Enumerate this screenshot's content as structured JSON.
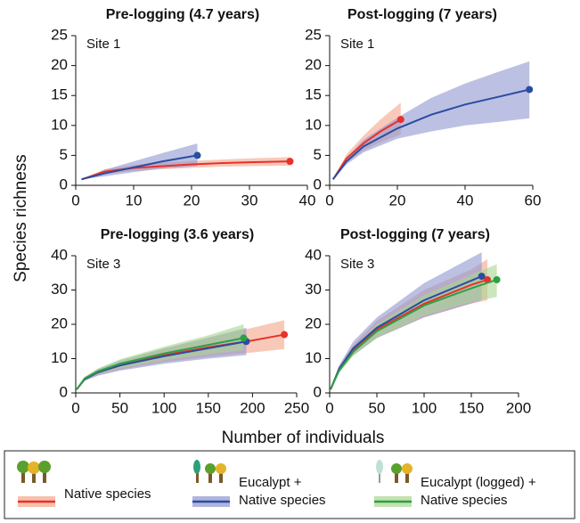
{
  "chart_data": [
    {
      "type": "line",
      "title": "Pre-logging (4.7 years)",
      "annotation": "Site 1",
      "xlim": [
        0,
        40
      ],
      "xticks": [
        0,
        10,
        20,
        30,
        40
      ],
      "ylim": [
        0,
        25
      ],
      "yticks": [
        0,
        5,
        10,
        15,
        20,
        25
      ],
      "series": [
        {
          "name": "Native species",
          "color": "#e8312a",
          "band_color": "#f4a58a",
          "x": [
            1,
            5,
            10,
            15,
            20,
            25,
            30,
            37
          ],
          "values": [
            1,
            2.3,
            2.9,
            3.2,
            3.5,
            3.7,
            3.85,
            4
          ],
          "lower": [
            1,
            1.9,
            2.4,
            2.7,
            2.9,
            3.1,
            3.2,
            3.3
          ],
          "upper": [
            1,
            2.7,
            3.4,
            3.8,
            4.1,
            4.3,
            4.5,
            4.7
          ]
        },
        {
          "name": "Eucalypt + Native species",
          "color": "#2a4da0",
          "band_color": "#8f96d0",
          "x": [
            1,
            5,
            10,
            15,
            21
          ],
          "values": [
            1,
            2.0,
            3.0,
            4.0,
            5.0
          ],
          "lower": [
            1,
            1.5,
            2.2,
            2.8,
            3.2
          ],
          "upper": [
            1,
            2.6,
            4.0,
            5.4,
            7.0
          ]
        }
      ]
    },
    {
      "type": "line",
      "title": "Post-logging (7 years)",
      "annotation": "Site 1",
      "xlim": [
        0,
        60
      ],
      "xticks": [
        0,
        20,
        40,
        60
      ],
      "ylim": [
        0,
        25
      ],
      "yticks": [
        0,
        5,
        10,
        15,
        20,
        25
      ],
      "series": [
        {
          "name": "Native species",
          "color": "#e8312a",
          "band_color": "#f4a58a",
          "x": [
            1,
            5,
            10,
            15,
            21
          ],
          "values": [
            1,
            4.5,
            7,
            9,
            11
          ],
          "lower": [
            1,
            3.8,
            5.8,
            7.2,
            8.5
          ],
          "upper": [
            1,
            5.2,
            8.3,
            11,
            13.8
          ]
        },
        {
          "name": "Eucalypt + Native species",
          "color": "#2a4da0",
          "band_color": "#8f96d0",
          "x": [
            1,
            5,
            10,
            20,
            30,
            40,
            50,
            59
          ],
          "values": [
            1,
            4,
            6.5,
            9.5,
            11.8,
            13.5,
            14.8,
            16
          ],
          "lower": [
            1,
            3.5,
            5.5,
            7.8,
            9,
            10,
            10.6,
            11.2
          ],
          "upper": [
            1,
            4.6,
            7.6,
            11.3,
            14.6,
            17,
            19,
            20.7
          ]
        }
      ]
    },
    {
      "type": "line",
      "title": "Pre-logging (3.6 years)",
      "annotation": "Site 3",
      "xlim": [
        0,
        250
      ],
      "xticks": [
        0,
        50,
        100,
        150,
        200,
        250
      ],
      "ylim": [
        0,
        40
      ],
      "yticks": [
        0,
        10,
        20,
        30,
        40
      ],
      "series": [
        {
          "name": "Native species",
          "color": "#e8312a",
          "band_color": "#f4a58a",
          "x": [
            1,
            10,
            25,
            50,
            100,
            150,
            200,
            236
          ],
          "values": [
            1,
            4,
            6,
            8,
            11,
            13.3,
            15.3,
            17
          ],
          "lower": [
            1,
            3.5,
            5.2,
            6.8,
            9,
            10.5,
            11.8,
            12.8
          ],
          "upper": [
            1,
            4.5,
            6.8,
            9.2,
            13,
            16,
            19,
            21.2
          ]
        },
        {
          "name": "Eucalypt + Native species",
          "color": "#2a4da0",
          "band_color": "#8f96d0",
          "x": [
            1,
            10,
            25,
            50,
            100,
            150,
            193
          ],
          "values": [
            1,
            4,
            6,
            8,
            10.7,
            13,
            15
          ],
          "lower": [
            1,
            3.5,
            5,
            6.5,
            8.5,
            10,
            11
          ],
          "upper": [
            1,
            4.5,
            7,
            9.5,
            13,
            16.2,
            19
          ]
        },
        {
          "name": "Eucalypt (logged) + Native species",
          "color": "#2ca047",
          "band_color": "#a9d58f",
          "x": [
            1,
            10,
            25,
            50,
            100,
            150,
            190
          ],
          "values": [
            1,
            4.2,
            6.3,
            8.5,
            11.5,
            14,
            16
          ],
          "lower": [
            1,
            3.7,
            5.5,
            7.2,
            9.5,
            11.3,
            12.5
          ],
          "upper": [
            1,
            4.7,
            7.1,
            9.8,
            13.5,
            16.8,
            20
          ]
        }
      ]
    },
    {
      "type": "line",
      "title": "Post-logging (7 years)",
      "annotation": "Site 3",
      "xlim": [
        0,
        200
      ],
      "xticks": [
        0,
        50,
        100,
        150,
        200
      ],
      "ylim": [
        0,
        40
      ],
      "yticks": [
        0,
        10,
        20,
        30,
        40
      ],
      "series": [
        {
          "name": "Native species",
          "color": "#e8312a",
          "band_color": "#f4a58a",
          "x": [
            1,
            10,
            25,
            50,
            100,
            150,
            167
          ],
          "values": [
            1,
            7,
            12.5,
            18.5,
            26,
            31.5,
            33
          ],
          "lower": [
            1,
            6,
            11,
            16,
            22,
            26,
            27
          ],
          "upper": [
            1,
            8,
            14,
            21,
            30,
            36,
            39
          ]
        },
        {
          "name": "Eucalypt + Native species",
          "color": "#2a4da0",
          "band_color": "#8f96d0",
          "x": [
            1,
            10,
            25,
            50,
            100,
            161
          ],
          "values": [
            1,
            7,
            13,
            19,
            27,
            34
          ],
          "lower": [
            1,
            6,
            11,
            16,
            22,
            27
          ],
          "upper": [
            1,
            8,
            15,
            22,
            32,
            41
          ]
        },
        {
          "name": "Eucalypt (logged) + Native species",
          "color": "#2ca047",
          "band_color": "#a9d58f",
          "x": [
            1,
            10,
            25,
            50,
            100,
            150,
            177
          ],
          "values": [
            1,
            6.5,
            12,
            18,
            25.5,
            30.5,
            33
          ],
          "lower": [
            1,
            5.8,
            10.8,
            16,
            22.5,
            26.5,
            28
          ],
          "upper": [
            1,
            7.2,
            13.2,
            20,
            28.5,
            34.5,
            37.5
          ]
        }
      ]
    }
  ],
  "y_label": "Species richness",
  "x_label": "Number of individuals"
}
